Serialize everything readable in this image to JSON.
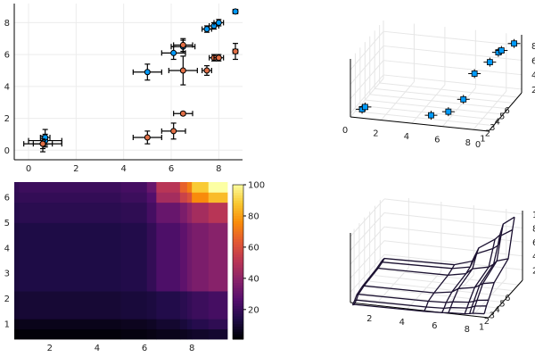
{
  "chart_data": [
    {
      "type": "scatter",
      "xlim": [
        -0.6,
        9.0
      ],
      "ylim": [
        -0.6,
        9.2
      ],
      "xticks": [
        "0",
        "2",
        "4",
        "6",
        "8"
      ],
      "yticks": [
        "0",
        "2",
        "4",
        "6",
        "8"
      ],
      "grid": true,
      "legend": "none",
      "series": [
        {
          "color": "#009af9",
          "points": [
            {
              "x": 0.6,
              "y": 0.4,
              "xerr": 0.8,
              "yerr": 0.5
            },
            {
              "x": 0.7,
              "y": 0.6,
              "xerr": 0.7,
              "yerr": 0.4
            },
            {
              "x": 0.7,
              "y": 0.8,
              "xerr": 0.2,
              "yerr": 0.5
            },
            {
              "x": 5.0,
              "y": 4.9,
              "xerr": 0.6,
              "yerr": 0.5
            },
            {
              "x": 6.1,
              "y": 6.1,
              "xerr": 0.5,
              "yerr": 0.4
            },
            {
              "x": 6.5,
              "y": 6.5,
              "xerr": 0.5,
              "yerr": 0.4
            },
            {
              "x": 7.5,
              "y": 7.6,
              "xerr": 0.2,
              "yerr": 0.2
            },
            {
              "x": 7.8,
              "y": 7.8,
              "xerr": 0.2,
              "yerr": 0.2
            },
            {
              "x": 8.0,
              "y": 8.0,
              "xerr": 0.2,
              "yerr": 0.2
            },
            {
              "x": 8.7,
              "y": 8.7,
              "xerr": 0.1,
              "yerr": 0.1
            }
          ]
        },
        {
          "color": "#e26f46",
          "points": [
            {
              "x": 0.6,
              "y": 0.4,
              "xerr": 0.4,
              "yerr": 0.3
            },
            {
              "x": 5.0,
              "y": 0.8,
              "xerr": 0.6,
              "yerr": 0.4
            },
            {
              "x": 6.1,
              "y": 1.2,
              "xerr": 0.5,
              "yerr": 0.5
            },
            {
              "x": 6.5,
              "y": 2.3,
              "xerr": 0.4,
              "yerr": 0.1
            },
            {
              "x": 6.5,
              "y": 5.0,
              "xerr": 0.6,
              "yerr": 0.9
            },
            {
              "x": 6.5,
              "y": 6.6,
              "xerr": 0.4,
              "yerr": 0.4
            },
            {
              "x": 7.5,
              "y": 5.0,
              "xerr": 0.2,
              "yerr": 0.3
            },
            {
              "x": 7.8,
              "y": 5.8,
              "xerr": 0.2,
              "yerr": 0.2
            },
            {
              "x": 8.0,
              "y": 5.8,
              "xerr": 0.2,
              "yerr": 0.2
            },
            {
              "x": 8.7,
              "y": 6.2,
              "xerr": 0.1,
              "yerr": 0.5
            }
          ]
        }
      ]
    },
    {
      "type": "scatter3d",
      "xticks": [
        "0",
        "2",
        "4",
        "6",
        "8"
      ],
      "yticks": [
        "0",
        "1",
        "2",
        "3",
        "4",
        "5",
        "6"
      ],
      "zticks": [
        "2",
        "4",
        "6",
        "8"
      ],
      "grid": true,
      "legend": "none",
      "points": [
        {
          "x": 0.6,
          "y": 0.5,
          "z": 2.3
        },
        {
          "x": 0.7,
          "y": 0.8,
          "z": 2.4
        },
        {
          "x": 5.0,
          "y": 0.8,
          "z": 2.2
        },
        {
          "x": 6.0,
          "y": 1.2,
          "z": 2.6
        },
        {
          "x": 6.6,
          "y": 2.4,
          "z": 3.5
        },
        {
          "x": 6.5,
          "y": 5.0,
          "z": 5.0
        },
        {
          "x": 7.5,
          "y": 5.0,
          "z": 6.8
        },
        {
          "x": 7.8,
          "y": 5.8,
          "z": 7.6
        },
        {
          "x": 8.0,
          "y": 5.8,
          "z": 7.9
        },
        {
          "x": 8.7,
          "y": 6.2,
          "z": 8.7
        }
      ]
    },
    {
      "type": "heatmap",
      "xlim": [
        0.5,
        9.5
      ],
      "ylim": [
        0.4,
        6.6
      ],
      "xticks": [
        "2",
        "4",
        "6",
        "8"
      ],
      "yticks": [
        "1",
        "2",
        "3",
        "4",
        "5",
        "6"
      ],
      "colorbar_ticks": [
        "20",
        "40",
        "60",
        "80",
        "100"
      ],
      "colorbar_range": [
        1,
        100
      ],
      "x_edges": [
        0.6,
        0.7,
        5.0,
        6.1,
        6.5,
        7.5,
        7.8,
        8.0,
        8.7,
        9.3
      ],
      "y_edges": [
        0.4,
        0.8,
        1.2,
        2.3,
        5.0,
        5.8,
        6.2,
        6.6
      ],
      "z": [
        [
          1,
          2,
          3,
          4,
          5,
          6,
          7,
          8,
          9
        ],
        [
          4,
          5,
          6,
          7,
          9,
          11,
          13,
          15,
          17
        ],
        [
          9,
          10,
          11,
          12,
          14,
          16,
          18,
          20,
          22
        ],
        [
          12,
          13,
          14,
          18,
          24,
          28,
          32,
          35,
          38
        ],
        [
          15,
          16,
          17,
          22,
          30,
          35,
          40,
          45,
          50
        ],
        [
          17,
          18,
          20,
          25,
          45,
          55,
          60,
          75,
          85
        ],
        [
          18,
          20,
          22,
          30,
          50,
          65,
          72,
          88,
          100
        ]
      ]
    },
    {
      "type": "surface3d",
      "xticks": [
        "2",
        "4",
        "6",
        "8"
      ],
      "yticks": [
        "1",
        "2",
        "3",
        "4",
        "5",
        "6"
      ],
      "zticks": [
        "20",
        "40",
        "60",
        "80",
        "100"
      ],
      "grid": true,
      "legend": "none"
    }
  ]
}
